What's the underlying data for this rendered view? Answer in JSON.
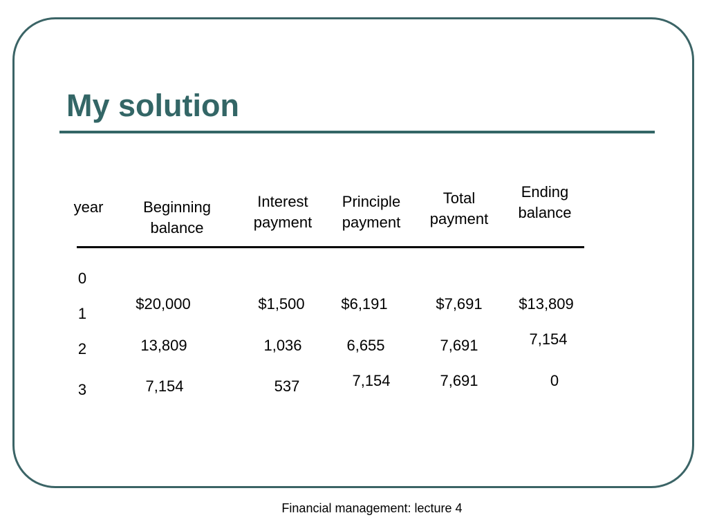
{
  "slide": {
    "title": "My solution",
    "footer": "Financial management: lecture 4"
  },
  "table": {
    "headers": {
      "year": "year",
      "beginning_balance": [
        "Beginning",
        "balance"
      ],
      "interest_payment": [
        "Interest",
        "payment"
      ],
      "principle_payment": [
        "Principle",
        "payment"
      ],
      "total_payment": [
        "Total",
        "payment"
      ],
      "ending_balance": [
        "Ending",
        "balance"
      ]
    },
    "years": [
      "0",
      "1",
      "2",
      "3"
    ],
    "rows": [
      {
        "beginning_balance": "$20,000",
        "interest_payment": "$1,500",
        "principle_payment": "$6,191",
        "total_payment": "$7,691",
        "ending_balance": "$13,809"
      },
      {
        "beginning_balance": "13,809",
        "interest_payment": "1,036",
        "principle_payment": "6,655",
        "total_payment": "7,691",
        "ending_balance": "7,154"
      },
      {
        "beginning_balance": "7,154",
        "interest_payment": "537",
        "principle_payment": "7,154",
        "total_payment": "7,691",
        "ending_balance": "0"
      }
    ]
  }
}
